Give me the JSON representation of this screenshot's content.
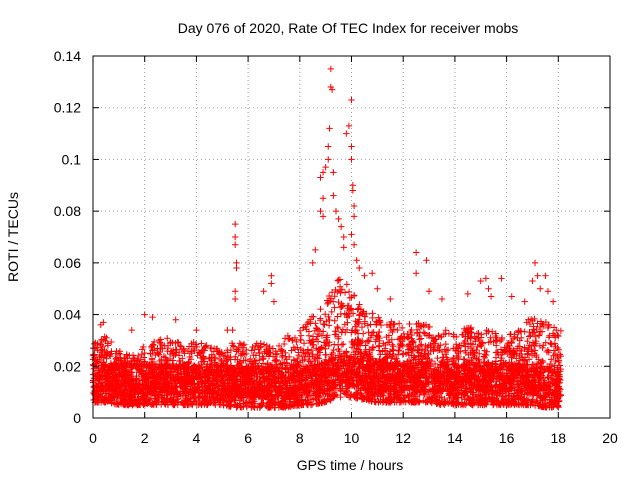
{
  "chart_data": {
    "type": "scatter",
    "title": "Day 076 of 2020, Rate Of TEC Index for receiver mobs",
    "xlabel": "GPS time / hours",
    "ylabel": "ROTI / TECUs",
    "xlim": [
      0,
      20
    ],
    "ylim": [
      0,
      0.14
    ],
    "x_ticks": [
      "0",
      "2",
      "4",
      "6",
      "8",
      "10",
      "12",
      "14",
      "16",
      "18",
      "20"
    ],
    "y_ticks": [
      "0",
      "0.02",
      "0.04",
      "0.06",
      "0.08",
      "0.1",
      "0.12",
      "0.14"
    ],
    "grid": true,
    "marker": "+",
    "marker_color": "#ff0000",
    "data_end_hour": 18.1,
    "baseline_envelope": {
      "x": [
        0,
        0.5,
        1,
        1.5,
        2,
        2.5,
        3,
        3.5,
        4,
        4.5,
        5,
        5.5,
        6,
        6.5,
        7,
        7.5,
        8,
        8.5,
        9,
        9.5,
        10,
        10.5,
        11,
        11.5,
        12,
        12.5,
        13,
        13.5,
        14,
        14.5,
        15,
        15.5,
        16,
        16.5,
        17,
        17.5,
        18
      ],
      "low": [
        0.006,
        0.006,
        0.005,
        0.005,
        0.005,
        0.005,
        0.005,
        0.005,
        0.005,
        0.005,
        0.005,
        0.004,
        0.004,
        0.004,
        0.004,
        0.004,
        0.005,
        0.005,
        0.006,
        0.008,
        0.008,
        0.007,
        0.006,
        0.006,
        0.006,
        0.006,
        0.006,
        0.005,
        0.005,
        0.005,
        0.005,
        0.005,
        0.005,
        0.005,
        0.005,
        0.004,
        0.004
      ],
      "high": [
        0.03,
        0.032,
        0.026,
        0.024,
        0.028,
        0.03,
        0.032,
        0.028,
        0.03,
        0.028,
        0.026,
        0.03,
        0.028,
        0.03,
        0.028,
        0.032,
        0.034,
        0.04,
        0.045,
        0.055,
        0.05,
        0.042,
        0.04,
        0.038,
        0.036,
        0.038,
        0.036,
        0.034,
        0.034,
        0.036,
        0.034,
        0.034,
        0.032,
        0.034,
        0.04,
        0.038,
        0.034
      ]
    },
    "notable_points": [
      {
        "x": 0.3,
        "y": 0.036
      },
      {
        "x": 0.4,
        "y": 0.037
      },
      {
        "x": 1.5,
        "y": 0.034
      },
      {
        "x": 2.0,
        "y": 0.04
      },
      {
        "x": 2.3,
        "y": 0.039
      },
      {
        "x": 3.2,
        "y": 0.038
      },
      {
        "x": 4.0,
        "y": 0.034
      },
      {
        "x": 5.2,
        "y": 0.034
      },
      {
        "x": 5.5,
        "y": 0.075
      },
      {
        "x": 5.5,
        "y": 0.07
      },
      {
        "x": 5.5,
        "y": 0.067
      },
      {
        "x": 5.55,
        "y": 0.06
      },
      {
        "x": 5.55,
        "y": 0.058
      },
      {
        "x": 5.5,
        "y": 0.049
      },
      {
        "x": 5.5,
        "y": 0.046
      },
      {
        "x": 5.4,
        "y": 0.034
      },
      {
        "x": 6.6,
        "y": 0.049
      },
      {
        "x": 6.9,
        "y": 0.055
      },
      {
        "x": 6.9,
        "y": 0.052
      },
      {
        "x": 7.0,
        "y": 0.045
      },
      {
        "x": 8.5,
        "y": 0.06
      },
      {
        "x": 8.6,
        "y": 0.065
      },
      {
        "x": 8.8,
        "y": 0.08
      },
      {
        "x": 8.8,
        "y": 0.093
      },
      {
        "x": 8.9,
        "y": 0.095
      },
      {
        "x": 8.9,
        "y": 0.085
      },
      {
        "x": 8.9,
        "y": 0.078
      },
      {
        "x": 9.0,
        "y": 0.097
      },
      {
        "x": 9.1,
        "y": 0.1
      },
      {
        "x": 9.1,
        "y": 0.105
      },
      {
        "x": 9.15,
        "y": 0.112
      },
      {
        "x": 9.2,
        "y": 0.135
      },
      {
        "x": 9.2,
        "y": 0.128
      },
      {
        "x": 9.25,
        "y": 0.127
      },
      {
        "x": 9.3,
        "y": 0.095
      },
      {
        "x": 9.3,
        "y": 0.086
      },
      {
        "x": 9.4,
        "y": 0.08
      },
      {
        "x": 9.5,
        "y": 0.077
      },
      {
        "x": 9.6,
        "y": 0.074
      },
      {
        "x": 9.7,
        "y": 0.07
      },
      {
        "x": 9.7,
        "y": 0.066
      },
      {
        "x": 9.8,
        "y": 0.11
      },
      {
        "x": 9.9,
        "y": 0.113
      },
      {
        "x": 10.0,
        "y": 0.123
      },
      {
        "x": 10.0,
        "y": 0.105
      },
      {
        "x": 10.0,
        "y": 0.1
      },
      {
        "x": 10.05,
        "y": 0.09
      },
      {
        "x": 10.05,
        "y": 0.088
      },
      {
        "x": 10.1,
        "y": 0.082
      },
      {
        "x": 10.1,
        "y": 0.078
      },
      {
        "x": 10.0,
        "y": 0.071
      },
      {
        "x": 10.1,
        "y": 0.067
      },
      {
        "x": 10.2,
        "y": 0.061
      },
      {
        "x": 10.3,
        "y": 0.058
      },
      {
        "x": 10.5,
        "y": 0.055
      },
      {
        "x": 10.8,
        "y": 0.056
      },
      {
        "x": 11.0,
        "y": 0.05
      },
      {
        "x": 11.5,
        "y": 0.046
      },
      {
        "x": 12.5,
        "y": 0.064
      },
      {
        "x": 12.5,
        "y": 0.056
      },
      {
        "x": 12.9,
        "y": 0.061
      },
      {
        "x": 13.0,
        "y": 0.049
      },
      {
        "x": 13.5,
        "y": 0.046
      },
      {
        "x": 14.5,
        "y": 0.048
      },
      {
        "x": 15.0,
        "y": 0.053
      },
      {
        "x": 15.2,
        "y": 0.054
      },
      {
        "x": 15.3,
        "y": 0.05
      },
      {
        "x": 15.4,
        "y": 0.047
      },
      {
        "x": 15.8,
        "y": 0.054
      },
      {
        "x": 16.2,
        "y": 0.047
      },
      {
        "x": 16.7,
        "y": 0.045
      },
      {
        "x": 17.0,
        "y": 0.053
      },
      {
        "x": 17.1,
        "y": 0.06
      },
      {
        "x": 17.2,
        "y": 0.055
      },
      {
        "x": 17.3,
        "y": 0.05
      },
      {
        "x": 17.5,
        "y": 0.055
      },
      {
        "x": 17.6,
        "y": 0.049
      },
      {
        "x": 17.8,
        "y": 0.045
      }
    ]
  }
}
